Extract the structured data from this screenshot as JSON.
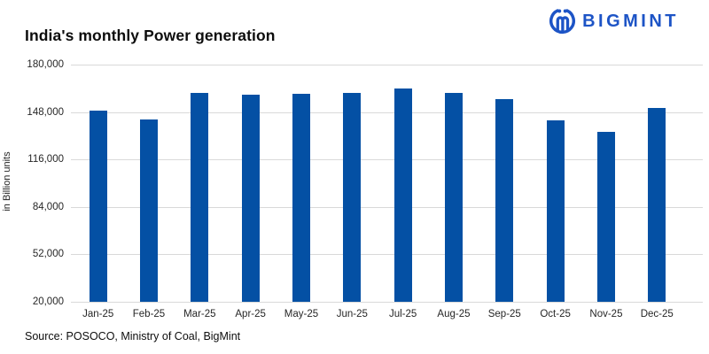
{
  "logo": {
    "text": "BIGMINT",
    "color": "#1d54c6",
    "icon": "bigmint-miners-emblem"
  },
  "footer": {
    "source_text": "Source: POSOCO, Ministry of Coal, BigMint"
  },
  "colors": {
    "bar": "#0450a4",
    "grid": "#d9d9d9",
    "logo_blue": "#1d54c6",
    "text": "#1a1a1a"
  },
  "chart_data": {
    "type": "bar",
    "title": "India's monthly Power generation",
    "xlabel": "",
    "ylabel": "in Billion units",
    "categories": [
      "Jan-25",
      "Feb-25",
      "Mar-25",
      "Apr-25",
      "May-25",
      "Jun-25",
      "Jul-25",
      "Aug-25",
      "Sep-25",
      "Oct-25",
      "Nov-25",
      "Dec-25"
    ],
    "values": [
      149000,
      143000,
      161000,
      159500,
      160500,
      161000,
      164000,
      161000,
      156500,
      142500,
      134500,
      151000
    ],
    "ylim": [
      20000,
      180000
    ],
    "ytick_interval": 32000,
    "yticks_labels": [
      "180,000",
      "148,000",
      "116,000",
      "84,000",
      "52,000",
      "20,000"
    ],
    "grid": true,
    "legend": false,
    "bar_color": "#0450a4"
  }
}
